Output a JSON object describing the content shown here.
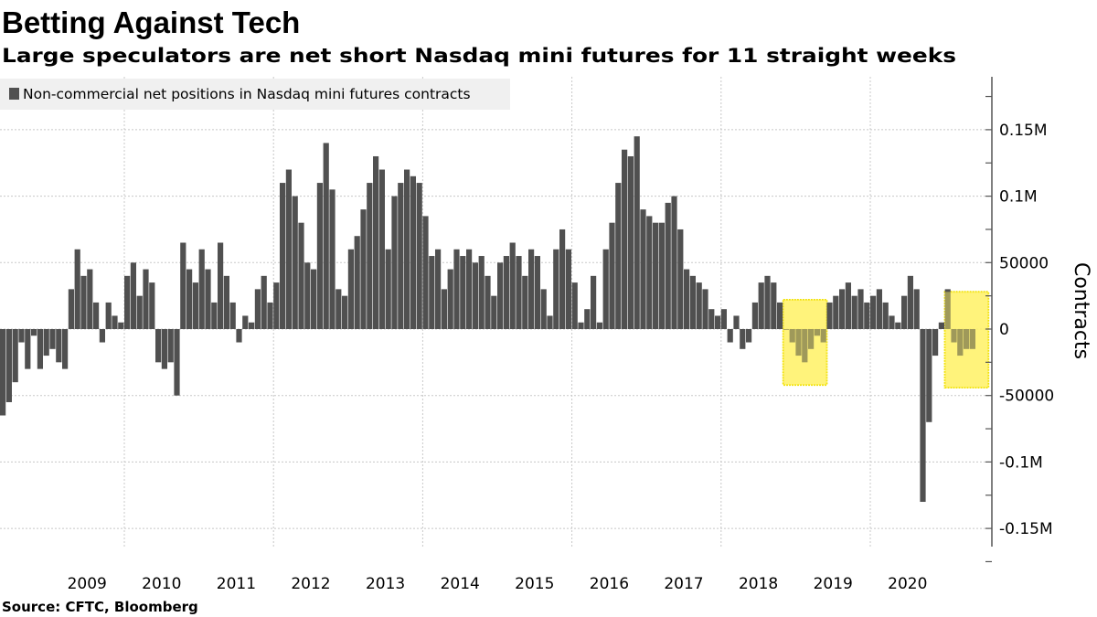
{
  "chart_data": {
    "type": "bar",
    "title": "Betting Against Tech",
    "subtitle": "Large speculators are net short Nasdaq mini futures for 11 straight weeks",
    "source": "Source:  CFTC, Bloomberg",
    "ylabel": "Contracts",
    "xlabel": "",
    "legend": {
      "position": "top-left",
      "entries": [
        "Non-commercial net positions in Nasdaq mini futures contracts"
      ]
    },
    "series": [
      {
        "name": "Non-commercial net positions in Nasdaq mini futures contracts",
        "color": "#505050"
      }
    ],
    "value_unit": "thousand contracts",
    "dates": [
      "2007-11",
      "2007-12",
      "2008-01",
      "2008-02",
      "2008-03",
      "2008-04",
      "2008-05",
      "2008-06",
      "2008-07",
      "2008-08",
      "2008-09",
      "2008-10",
      "2008-11",
      "2008-12",
      "2009-01",
      "2009-02",
      "2009-03",
      "2009-04",
      "2009-05",
      "2009-06",
      "2009-07",
      "2009-08",
      "2009-09",
      "2009-10",
      "2009-11",
      "2009-12",
      "2010-01",
      "2010-02",
      "2010-03",
      "2010-04",
      "2010-05",
      "2010-06",
      "2010-07",
      "2010-08",
      "2010-09",
      "2010-10",
      "2010-11",
      "2010-12",
      "2011-01",
      "2011-02",
      "2011-03",
      "2011-04",
      "2011-05",
      "2011-06",
      "2011-07",
      "2011-08",
      "2011-09",
      "2011-10",
      "2011-11",
      "2011-12",
      "2012-01",
      "2012-02",
      "2012-03",
      "2012-04",
      "2012-05",
      "2012-06",
      "2012-07",
      "2012-08",
      "2012-09",
      "2012-10",
      "2012-11",
      "2012-12",
      "2013-01",
      "2013-02",
      "2013-03",
      "2013-04",
      "2013-05",
      "2013-06",
      "2013-07",
      "2013-08",
      "2013-09",
      "2013-10",
      "2013-11",
      "2013-12",
      "2014-01",
      "2014-02",
      "2014-03",
      "2014-04",
      "2014-05",
      "2014-06",
      "2014-07",
      "2014-08",
      "2014-09",
      "2014-10",
      "2014-11",
      "2014-12",
      "2015-01",
      "2015-02",
      "2015-03",
      "2015-04",
      "2015-05",
      "2015-06",
      "2015-07",
      "2015-08",
      "2015-09",
      "2015-10",
      "2015-11",
      "2015-12",
      "2016-01",
      "2016-02",
      "2016-03",
      "2016-04",
      "2016-05",
      "2016-06",
      "2016-07",
      "2016-08",
      "2016-09",
      "2016-10",
      "2016-11",
      "2016-12",
      "2017-01",
      "2017-02",
      "2017-03",
      "2017-04",
      "2017-05",
      "2017-06",
      "2017-07",
      "2017-08",
      "2017-09",
      "2017-10",
      "2017-11",
      "2017-12",
      "2018-01",
      "2018-02",
      "2018-03",
      "2018-04",
      "2018-05",
      "2018-06",
      "2018-07",
      "2018-08",
      "2018-09",
      "2018-10",
      "2018-11",
      "2018-12",
      "2019-01",
      "2019-02",
      "2019-03",
      "2019-04",
      "2019-05",
      "2019-06",
      "2019-07",
      "2019-08",
      "2019-09",
      "2019-10",
      "2019-11",
      "2019-12",
      "2020-01",
      "2020-02",
      "2020-03",
      "2020-04",
      "2020-05",
      "2020-06",
      "2020-07",
      "2020-08",
      "2020-09",
      "2020-10",
      "2020-11"
    ],
    "values": [
      -65,
      -55,
      -40,
      -10,
      -30,
      -5,
      -30,
      -20,
      -15,
      -25,
      -30,
      30,
      60,
      40,
      45,
      20,
      -10,
      20,
      10,
      5,
      40,
      50,
      25,
      45,
      35,
      -25,
      -30,
      -25,
      -50,
      65,
      45,
      35,
      60,
      45,
      20,
      65,
      40,
      20,
      -10,
      10,
      5,
      30,
      40,
      20,
      35,
      110,
      120,
      100,
      80,
      50,
      45,
      110,
      140,
      105,
      30,
      25,
      60,
      70,
      90,
      110,
      130,
      120,
      60,
      100,
      110,
      120,
      115,
      110,
      85,
      55,
      60,
      30,
      45,
      60,
      55,
      60,
      50,
      55,
      40,
      25,
      50,
      55,
      65,
      55,
      40,
      60,
      55,
      30,
      10,
      60,
      75,
      60,
      35,
      5,
      15,
      40,
      5,
      60,
      80,
      110,
      135,
      130,
      145,
      90,
      85,
      80,
      80,
      95,
      100,
      75,
      45,
      40,
      35,
      30,
      15,
      10,
      15,
      -10,
      10,
      -15,
      -10,
      20,
      35,
      40,
      35,
      20,
      0,
      -10,
      -20,
      -25,
      -15,
      -5,
      -10,
      20,
      25,
      30,
      35,
      25,
      30,
      20,
      25,
      30,
      20,
      10,
      5,
      25,
      40,
      30,
      -130,
      -70,
      -20,
      5,
      30,
      -10,
      -20,
      -15,
      -15
    ],
    "highlights": [
      {
        "from": "2018-05",
        "to": "2018-11",
        "color": "#fff266"
      },
      {
        "from": "2020-07",
        "to": "2021-01",
        "color": "#fff266"
      }
    ],
    "ylim": [
      -175,
      175
    ],
    "yticks": [
      {
        "value": 150,
        "label": "0.15M"
      },
      {
        "value": 100,
        "label": "0.1M"
      },
      {
        "value": 50,
        "label": "50000"
      },
      {
        "value": 0,
        "label": "0"
      },
      {
        "value": -50,
        "label": "-50000"
      },
      {
        "value": -100,
        "label": "-0.1M"
      },
      {
        "value": -150,
        "label": "-0.15M"
      }
    ],
    "xticks": [
      "2009",
      "2010",
      "2011",
      "2012",
      "2013",
      "2014",
      "2015",
      "2016",
      "2017",
      "2018",
      "2019",
      "2020"
    ],
    "grid": true
  }
}
